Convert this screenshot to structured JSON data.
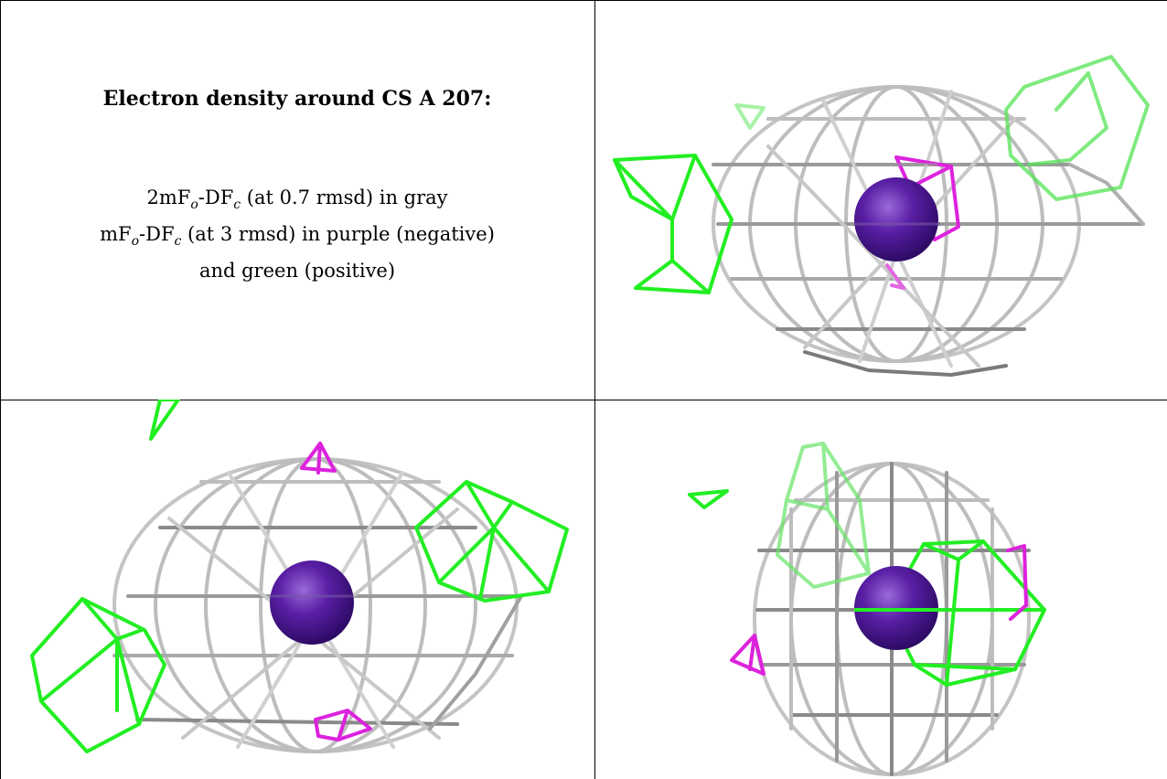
{
  "caption": {
    "title": "Electron density around CS A 207:",
    "line1_prefix": "2mF",
    "line1_sub1": "o",
    "line1_mid": "-DF",
    "line1_sub2": "c",
    "line1_suffix": " (at 0.7 rmsd) in gray",
    "line2_prefix": "mF",
    "line2_sub1": "o",
    "line2_mid": "-DF",
    "line2_sub2": "c",
    "line2_suffix": " (at 3 rmsd) in purple (negative)",
    "line3": "and green (positive)"
  },
  "colors": {
    "density_gray": "#b8b8b8",
    "density_dark": "#6e6e6e",
    "positive_green": "#22ee22",
    "negative_magenta": "#dd22dd",
    "atom_purple": "#5a1fa6"
  },
  "panels": [
    {
      "name": "view-top-right",
      "atom": "CS"
    },
    {
      "name": "view-bottom-left",
      "atom": "CS"
    },
    {
      "name": "view-bottom-right",
      "atom": "CS"
    }
  ]
}
